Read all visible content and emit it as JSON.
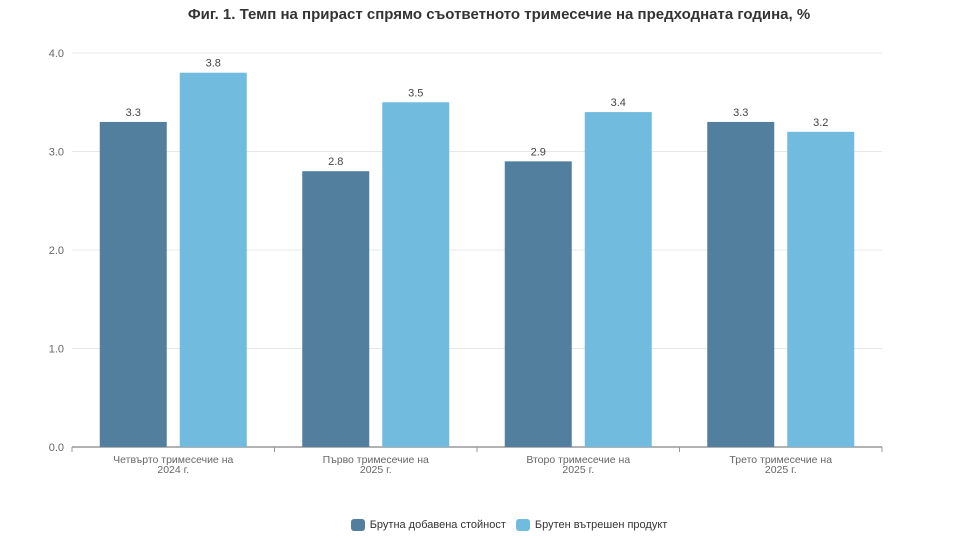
{
  "chart_data": {
    "type": "bar",
    "title": "Фиг. 1. Темп на прираст спрямо съответното тримесечие на предходната година, %",
    "categories": [
      [
        "Четвърто тримесечие на",
        "2024 г."
      ],
      [
        "Първо тримесечие на",
        "2025 г."
      ],
      [
        "Второ тримесечие на",
        "2025 г."
      ],
      [
        "Трето тримесечие на",
        "2025 г."
      ]
    ],
    "series": [
      {
        "name": "Брутна добавена стойност",
        "values": [
          3.3,
          2.8,
          2.9,
          3.3
        ],
        "labels": [
          "3.3",
          "2.8",
          "2.9",
          "3.3"
        ],
        "color": "#527f9e"
      },
      {
        "name": "Брутен вътрешен продукт",
        "values": [
          3.8,
          3.5,
          3.4,
          3.2
        ],
        "labels": [
          "3.8",
          "3.5",
          "3.4",
          "3.2"
        ],
        "color": "#71bbdf"
      }
    ],
    "ylim": [
      0,
      4
    ],
    "yticks": [
      "0.0",
      "1.0",
      "2.0",
      "3.0",
      "4.0"
    ],
    "grid": true,
    "legend": "bottom",
    "xlabel": "",
    "ylabel": ""
  }
}
